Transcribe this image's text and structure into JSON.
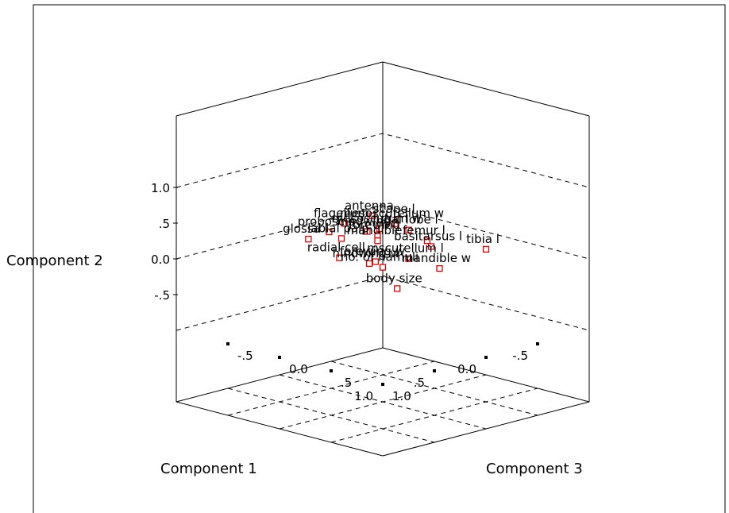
{
  "chart_data": {
    "type": "scatter",
    "projection": "3d-loading-plot",
    "xlabel": "Component 1",
    "ylabel": "Component 2",
    "zlabel": "Component 3",
    "xlim": [
      -1,
      1
    ],
    "ylim": [
      -1,
      1
    ],
    "zlim": [
      -1,
      1
    ],
    "grid": true,
    "legend": "none",
    "marker_color": "#e60000",
    "y_ticks": [
      "1.0",
      ".5",
      "0.0",
      "-.5"
    ],
    "x_ticks": [
      "1.0",
      ".5",
      "0.0",
      "-.5"
    ],
    "z_ticks": [
      "-.5",
      "0.0",
      ".5",
      "1.0"
    ],
    "series": [
      {
        "points": [
          {
            "label": "antenna",
            "x": 0.55,
            "y": 0.98,
            "z": 0.45
          },
          {
            "label": "scape l",
            "x": 0.48,
            "y": 0.97,
            "z": 0.62
          },
          {
            "label": "flagellum",
            "x": 0.72,
            "y": 0.9,
            "z": 0.35
          },
          {
            "label": "mesoscutellum w",
            "x": 0.48,
            "y": 0.9,
            "z": 0.6
          },
          {
            "label": "mesoscutum w",
            "x": 0.58,
            "y": 0.85,
            "z": 0.55
          },
          {
            "label": "proboscis",
            "x": 0.82,
            "y": 0.8,
            "z": 0.3
          },
          {
            "label": "hindwing",
            "x": 0.6,
            "y": 0.78,
            "z": 0.45
          },
          {
            "label": "jugal lobe l",
            "x": 0.4,
            "y": 0.8,
            "z": 0.65
          },
          {
            "label": "forewing",
            "x": 0.55,
            "y": 0.73,
            "z": 0.5
          },
          {
            "label": "femur l",
            "x": 0.35,
            "y": 0.68,
            "z": 0.78
          },
          {
            "label": "glossa l",
            "x": 0.92,
            "y": 0.7,
            "z": 0.2
          },
          {
            "label": "labial palp",
            "x": 0.75,
            "y": 0.7,
            "z": 0.35
          },
          {
            "label": "mandible",
            "x": 0.55,
            "y": 0.65,
            "z": 0.5
          },
          {
            "label": "basitarsus l",
            "x": 0.33,
            "y": 0.6,
            "z": 0.8
          },
          {
            "label": "tibia l",
            "x": 0.05,
            "y": 0.55,
            "z": 1.05
          },
          {
            "label": "radial cell",
            "x": 0.72,
            "y": 0.4,
            "z": 0.3
          },
          {
            "label": "forewing w",
            "x": 0.55,
            "y": 0.35,
            "z": 0.48
          },
          {
            "label": "mscutellum l",
            "x": 0.4,
            "y": 0.4,
            "z": 0.65
          },
          {
            "label": "mandible w",
            "x": 0.3,
            "y": 0.3,
            "z": 0.85
          },
          {
            "label": "hindwing w",
            "x": 0.55,
            "y": 0.3,
            "z": 0.42
          },
          {
            "label": "no. of hamuli",
            "x": 0.5,
            "y": 0.26,
            "z": 0.5
          },
          {
            "label": "body size",
            "x": 0.48,
            "y": 0.0,
            "z": 0.62
          }
        ]
      }
    ]
  }
}
